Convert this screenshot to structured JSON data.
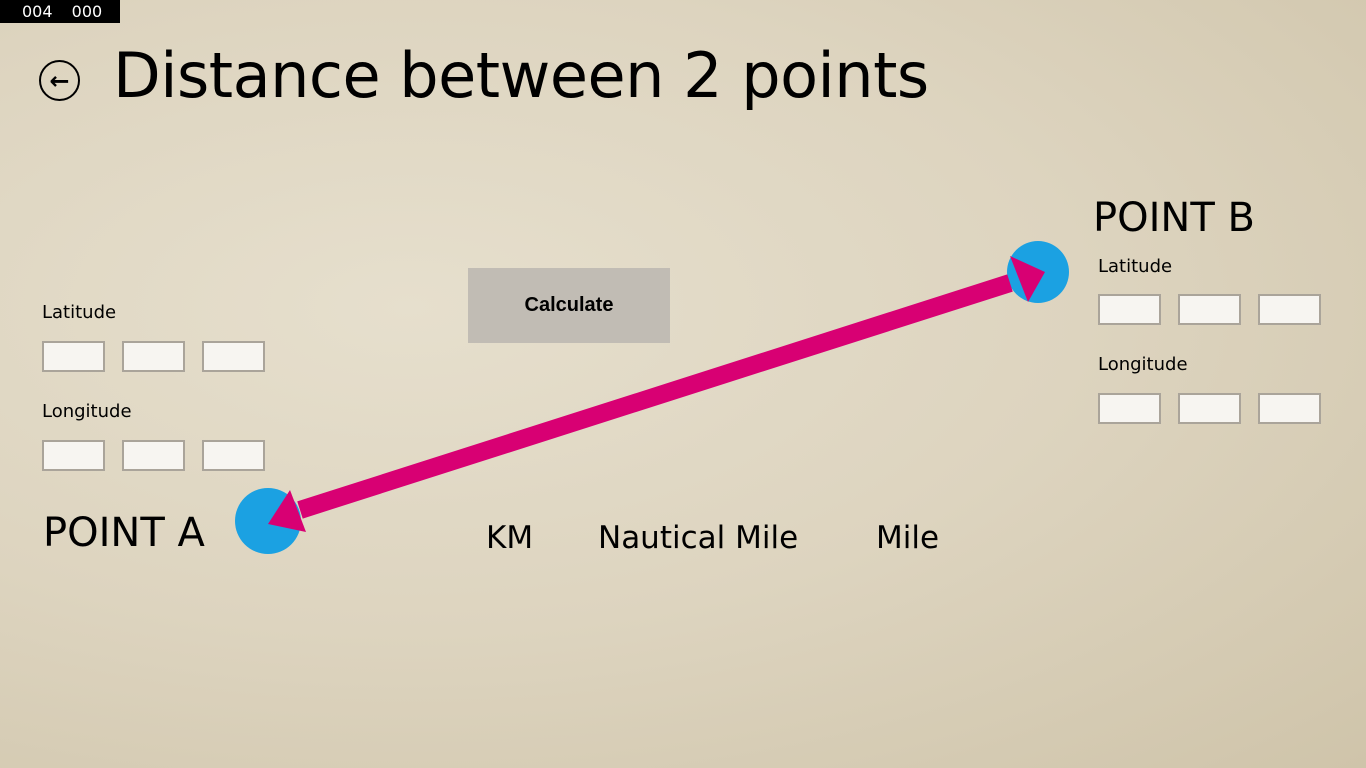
{
  "status": {
    "left": "004",
    "right": "000"
  },
  "header": {
    "title": "Distance between 2 points",
    "back_icon": "arrow-left-circle-icon"
  },
  "point_a": {
    "label": "POINT A",
    "latitude_label": "Latitude",
    "longitude_label": "Longitude",
    "latitude": [
      "",
      "",
      ""
    ],
    "longitude": [
      "",
      "",
      ""
    ]
  },
  "point_b": {
    "label": "POINT B",
    "latitude_label": "Latitude",
    "longitude_label": "Longitude",
    "latitude": [
      "",
      "",
      ""
    ],
    "longitude": [
      "",
      "",
      ""
    ]
  },
  "calculate_label": "Calculate",
  "units": [
    "KM",
    "Nautical Mile",
    "Mile"
  ],
  "colors": {
    "point": "#1ba1e2",
    "arrow": "#d80073",
    "button": "#c1bcb4"
  }
}
